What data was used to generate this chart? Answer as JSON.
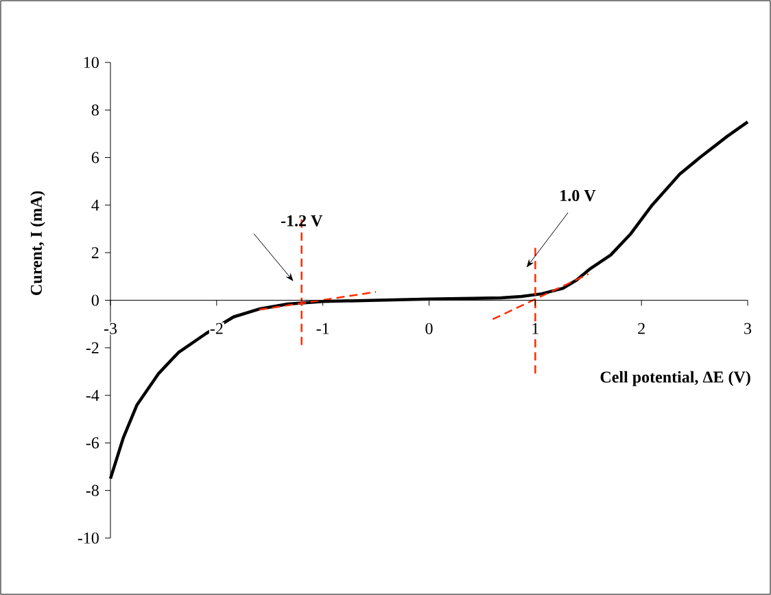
{
  "chart_data": {
    "type": "line",
    "xlabel": "Cell potential, ΔE (V)",
    "ylabel": "Curent, I (mA)",
    "xlim": [
      -3,
      3
    ],
    "ylim": [
      -10,
      10
    ],
    "xticks": [
      -3,
      -2,
      -1,
      0,
      1,
      2,
      3
    ],
    "yticks": [
      -10,
      -8,
      -6,
      -4,
      -2,
      0,
      2,
      4,
      6,
      8,
      10
    ],
    "grid": false,
    "marker": "none",
    "series": [
      {
        "color": "#000000",
        "line_style": "solid",
        "x": [
          -3,
          -2.88,
          -2.75,
          -2.55,
          -2.36,
          -2.1,
          -1.84,
          -1.59,
          -1.33,
          -1.0,
          -0.5,
          0,
          0.4,
          0.68,
          0.87,
          1.06,
          1.26,
          1.39,
          1.51,
          1.71,
          1.9,
          2.1,
          2.36,
          2.55,
          2.81,
          3.0
        ],
        "values": [
          -7.5,
          -5.8,
          -4.4,
          -3.1,
          -2.2,
          -1.4,
          -0.7,
          -0.36,
          -0.16,
          -0.05,
          0.0,
          0.05,
          0.08,
          0.1,
          0.16,
          0.27,
          0.5,
          0.85,
          1.3,
          1.9,
          2.8,
          4.0,
          5.3,
          6.0,
          6.9,
          7.5
        ]
      },
      {
        "color": "#ff2a00",
        "line_style": "dashed",
        "x": [
          -1.2,
          -1.2
        ],
        "values": [
          3.4,
          -2
        ]
      },
      {
        "color": "#ff2a00",
        "line_style": "dashed",
        "x": [
          -1.6,
          -0.5
        ],
        "values": [
          -0.4,
          0.35
        ]
      },
      {
        "color": "#ff2a00",
        "line_style": "dashed",
        "x": [
          1.0,
          1.0
        ],
        "values": [
          2.2,
          -3.2
        ]
      },
      {
        "color": "#ff2a00",
        "line_style": "dashed",
        "x": [
          0.6,
          1.5
        ],
        "values": [
          -0.8,
          1.1
        ]
      }
    ],
    "annotations": [
      "-1.2 V",
      "1.0 V"
    ]
  }
}
